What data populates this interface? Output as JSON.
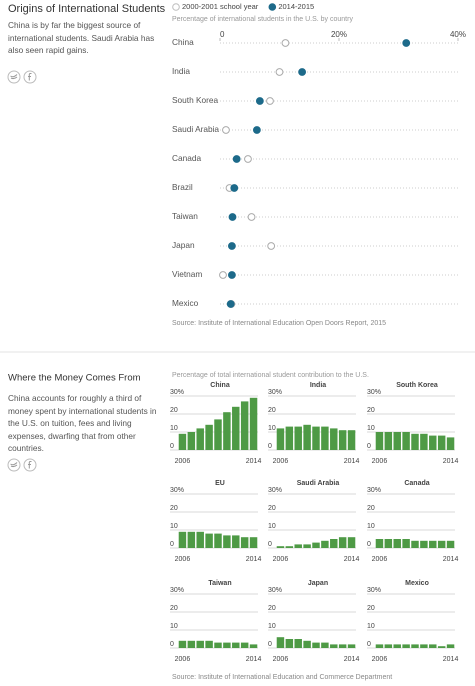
{
  "chart_data": [
    {
      "type": "dot",
      "title": "Origins of International Students",
      "description": "China is by far the biggest source of international students. Saudi Arabia has also seen rapid gains.",
      "subtitle": "Percentage of international students in the U.S. by country",
      "source": "Source: Institute of International Education Open Doors Report, 2015",
      "categories": [
        "China",
        "India",
        "South Korea",
        "Saudi Arabia",
        "Canada",
        "Brazil",
        "Taiwan",
        "Japan",
        "Vietnam",
        "Mexico"
      ],
      "series": [
        {
          "name": "2000-2001 school year",
          "color": "#bdbdbd",
          "values": [
            11,
            10,
            8.4,
            1,
            4.7,
            1.6,
            5.3,
            8.6,
            0.5,
            1.9
          ]
        },
        {
          "name": "2014-2015",
          "color": "#1d6a8a",
          "values": [
            31.3,
            13.8,
            6.7,
            6.2,
            2.8,
            2.4,
            2.1,
            2.0,
            2.0,
            1.8
          ]
        }
      ],
      "xlim": [
        0,
        40
      ],
      "xticks": [
        0,
        {
          "value": 20,
          "label": "20%"
        },
        {
          "value": 40,
          "label": "40%"
        }
      ]
    },
    {
      "type": "bar-multiples",
      "title": "Where the Money Comes From",
      "description": "China accounts for roughly a third of money spent by international students in the U.S. on tuition, fees and living expenses, dwarfing that from other countries.",
      "subtitle": "Percentage of total international student contribution to the U.S.",
      "source": "Source: Institute of International Education and Commerce Department",
      "color": "#4e9a45",
      "categories": [
        "2006",
        null,
        null,
        null,
        null,
        null,
        null,
        null,
        "2014"
      ],
      "ylim": [
        0,
        30
      ],
      "yticks": [
        0,
        10,
        20,
        {
          "value": 30,
          "label": "30%"
        }
      ],
      "series": [
        {
          "name": "China",
          "values": [
            9,
            10,
            12,
            14,
            17,
            21,
            24,
            27,
            29
          ]
        },
        {
          "name": "India",
          "values": [
            12,
            13,
            13,
            14,
            13,
            13,
            12,
            11,
            11
          ]
        },
        {
          "name": "South Korea",
          "values": [
            10,
            10,
            10,
            10,
            9,
            9,
            8,
            8,
            7
          ]
        },
        {
          "name": "EU",
          "values": [
            9,
            9,
            9,
            8,
            8,
            7,
            7,
            6,
            6
          ]
        },
        {
          "name": "Saudi Arabia",
          "values": [
            1,
            1,
            2,
            2,
            3,
            4,
            5,
            6,
            6
          ]
        },
        {
          "name": "Canada",
          "values": [
            5,
            5,
            5,
            5,
            4,
            4,
            4,
            4,
            4
          ]
        },
        {
          "name": "Taiwan",
          "values": [
            4,
            4,
            4,
            4,
            3,
            3,
            3,
            3,
            2
          ]
        },
        {
          "name": "Japan",
          "values": [
            6,
            5,
            5,
            4,
            3,
            3,
            2,
            2,
            2
          ]
        },
        {
          "name": "Mexico",
          "values": [
            2,
            2,
            2,
            2,
            2,
            2,
            2,
            1,
            2
          ]
        }
      ]
    }
  ]
}
